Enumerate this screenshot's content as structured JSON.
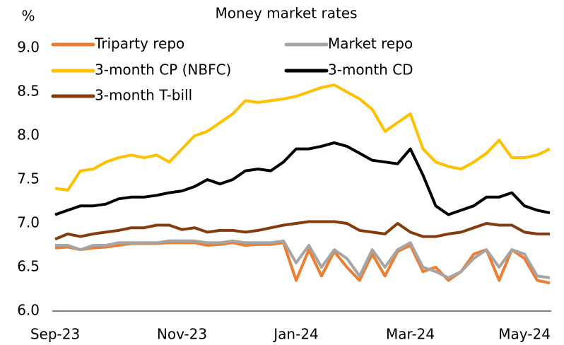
{
  "chart_data": {
    "type": "line",
    "title": "Money market rates",
    "y_label": "%",
    "categories": [
      "Sep-23",
      null,
      null,
      null,
      null,
      null,
      null,
      null,
      null,
      null,
      "Nov-23",
      null,
      null,
      null,
      null,
      null,
      null,
      null,
      null,
      "Jan-24",
      null,
      null,
      null,
      null,
      null,
      null,
      null,
      null,
      "Mar-24",
      null,
      null,
      null,
      null,
      null,
      null,
      null,
      null,
      "May-24",
      null,
      null
    ],
    "series": [
      {
        "name": "Triparty repo",
        "color": "#ed7d31",
        "values": [
          6.72,
          6.73,
          6.7,
          6.72,
          6.73,
          6.75,
          6.77,
          6.77,
          6.77,
          6.78,
          6.78,
          6.78,
          6.75,
          6.76,
          6.78,
          6.75,
          6.76,
          6.76,
          6.78,
          6.35,
          6.7,
          6.4,
          6.68,
          6.5,
          6.35,
          6.65,
          6.4,
          6.68,
          6.75,
          6.45,
          6.5,
          6.35,
          6.45,
          6.65,
          6.7,
          6.35,
          6.7,
          6.6,
          6.35,
          6.32
        ]
      },
      {
        "name": "Market repo",
        "color": "#a5a5a5",
        "values": [
          6.75,
          6.75,
          6.7,
          6.75,
          6.75,
          6.78,
          6.78,
          6.78,
          6.78,
          6.8,
          6.8,
          6.8,
          6.78,
          6.78,
          6.8,
          6.78,
          6.78,
          6.78,
          6.8,
          6.55,
          6.75,
          6.5,
          6.7,
          6.6,
          6.4,
          6.7,
          6.5,
          6.7,
          6.78,
          6.5,
          6.45,
          6.38,
          6.45,
          6.6,
          6.7,
          6.5,
          6.7,
          6.65,
          6.4,
          6.38
        ]
      },
      {
        "name": "3-month CP (NBFC)",
        "color": "#ffc000",
        "values": [
          7.4,
          7.38,
          7.6,
          7.62,
          7.7,
          7.75,
          7.78,
          7.75,
          7.78,
          7.7,
          7.85,
          8.0,
          8.05,
          8.15,
          8.25,
          8.4,
          8.38,
          8.4,
          8.42,
          8.45,
          8.5,
          8.55,
          8.58,
          8.5,
          8.42,
          8.3,
          8.05,
          8.15,
          8.25,
          7.85,
          7.7,
          7.65,
          7.62,
          7.7,
          7.8,
          7.95,
          7.75,
          7.75,
          7.78,
          7.85
        ]
      },
      {
        "name": "3-month CD",
        "color": "#000000",
        "values": [
          7.1,
          7.15,
          7.2,
          7.2,
          7.22,
          7.28,
          7.3,
          7.3,
          7.32,
          7.35,
          7.37,
          7.42,
          7.5,
          7.45,
          7.5,
          7.6,
          7.62,
          7.6,
          7.7,
          7.85,
          7.85,
          7.88,
          7.92,
          7.88,
          7.8,
          7.72,
          7.7,
          7.68,
          7.85,
          7.55,
          7.2,
          7.1,
          7.15,
          7.2,
          7.3,
          7.3,
          7.35,
          7.2,
          7.15,
          7.12
        ]
      },
      {
        "name": "3-month T-bill",
        "color": "#843c0c",
        "values": [
          6.82,
          6.88,
          6.85,
          6.88,
          6.9,
          6.92,
          6.95,
          6.95,
          6.98,
          6.98,
          6.93,
          6.95,
          6.9,
          6.92,
          6.92,
          6.9,
          6.92,
          6.95,
          6.98,
          7.0,
          7.02,
          7.02,
          7.02,
          7.0,
          6.92,
          6.9,
          6.88,
          7.0,
          6.9,
          6.85,
          6.85,
          6.88,
          6.9,
          6.95,
          7.0,
          6.98,
          6.98,
          6.9,
          6.88,
          6.88
        ]
      }
    ],
    "ylim": [
      6,
      9
    ],
    "yticks": [
      {
        "value": 6,
        "label": "6.0"
      },
      {
        "value": 6.5,
        "label": "6.5"
      },
      {
        "value": 7,
        "label": "7.0"
      },
      {
        "value": 7.5,
        "label": "7.5"
      },
      {
        "value": 8,
        "label": "8.0"
      },
      {
        "value": 8.5,
        "label": "8.5"
      },
      {
        "value": 9,
        "label": "9.0"
      }
    ],
    "grid": false
  }
}
